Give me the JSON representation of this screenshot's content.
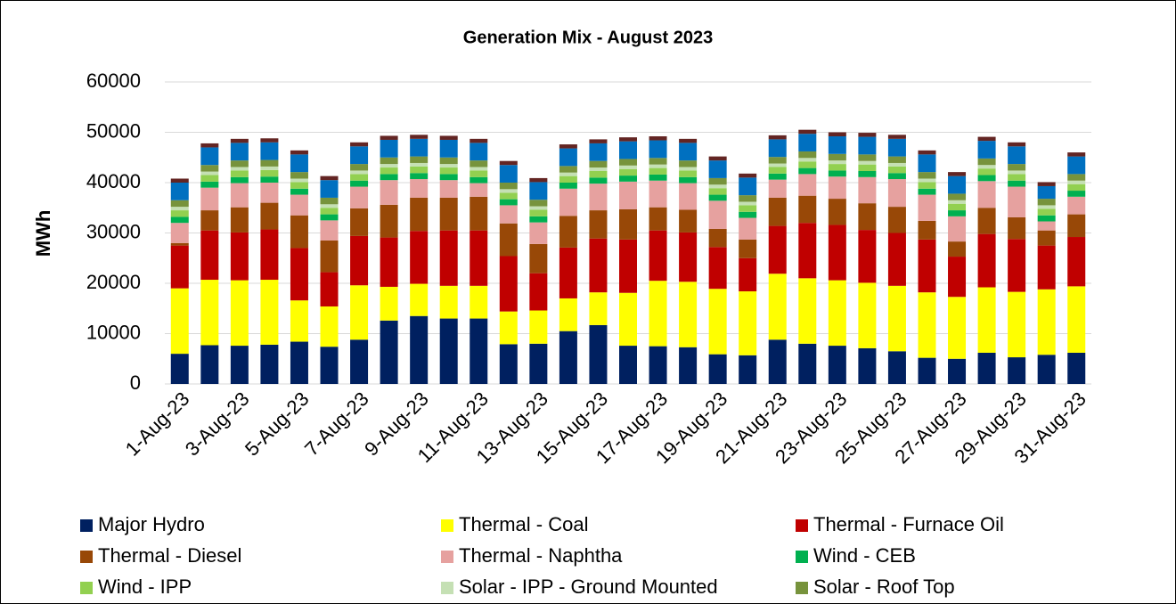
{
  "chart_data": {
    "type": "stacked_bar",
    "title": "Generation Mix - August 2023",
    "y_label": "MWh",
    "categories": [
      "1-Aug-23",
      null,
      "3-Aug-23",
      null,
      "5-Aug-23",
      null,
      "7-Aug-23",
      null,
      "9-Aug-23",
      null,
      "11-Aug-23",
      null,
      "13-Aug-23",
      null,
      "15-Aug-23",
      null,
      "17-Aug-23",
      null,
      "19-Aug-23",
      null,
      "21-Aug-23",
      null,
      "23-Aug-23",
      null,
      "25-Aug-23",
      null,
      "27-Aug-23",
      null,
      "29-Aug-23",
      null,
      "31-Aug-23"
    ],
    "ylim": [
      0,
      60000
    ],
    "yticks": [
      0,
      10000,
      20000,
      30000,
      40000,
      50000,
      60000
    ],
    "grid": true,
    "series": [
      {
        "name": "Major Hydro",
        "color": "#002060",
        "values": [
          6000,
          7700,
          7600,
          7800,
          8400,
          7400,
          8800,
          12600,
          13500,
          13000,
          13000,
          7900,
          8000,
          10500,
          11700,
          7600,
          7500,
          7300,
          5900,
          5700,
          8800,
          8000,
          7600,
          7100,
          6500,
          5200,
          5000,
          6200,
          5300,
          5800,
          6200
        ]
      },
      {
        "name": "Thermal - Coal",
        "color": "#ffff00",
        "values": [
          13000,
          13000,
          13000,
          12900,
          8200,
          8000,
          10800,
          6700,
          6400,
          6500,
          6500,
          6500,
          6600,
          6500,
          6500,
          10500,
          13000,
          13000,
          13000,
          12700,
          13100,
          13000,
          13000,
          13000,
          13000,
          13000,
          12300,
          13000,
          13000,
          13000,
          13200
        ]
      },
      {
        "name": "Thermal - Furnace Oil",
        "color": "#c00000",
        "values": [
          8500,
          9800,
          9500,
          10000,
          10400,
          6800,
          9800,
          9800,
          10500,
          11000,
          11000,
          11000,
          7400,
          10100,
          10700,
          10600,
          10000,
          9800,
          8300,
          6600,
          9500,
          11000,
          11000,
          10500,
          10500,
          10500,
          8000,
          10600,
          10500,
          8700,
          9800
        ]
      },
      {
        "name": "Thermal - Diesel",
        "color": "#984807",
        "values": [
          500,
          4000,
          5000,
          5300,
          6500,
          6300,
          5500,
          6500,
          6600,
          6500,
          6700,
          6500,
          5800,
          6300,
          5600,
          6000,
          4600,
          4500,
          3600,
          3700,
          5600,
          5400,
          5200,
          5300,
          5200,
          3700,
          3000,
          5200,
          4300,
          3000,
          4500
        ]
      },
      {
        "name": "Thermal - Naphtha",
        "color": "#e6a19f",
        "values": [
          4000,
          4500,
          4800,
          4000,
          4100,
          4000,
          4300,
          4900,
          3700,
          3500,
          2700,
          3600,
          4300,
          5400,
          5300,
          5500,
          5300,
          5300,
          5600,
          4300,
          3600,
          4300,
          4400,
          5200,
          5500,
          5200,
          5000,
          5300,
          6100,
          1800,
          3500
        ]
      },
      {
        "name": "Wind - CEB",
        "color": "#00b050",
        "values": [
          1200,
          1200,
          1200,
          1200,
          1200,
          1200,
          1200,
          1200,
          1200,
          1200,
          1200,
          1200,
          1200,
          1200,
          1200,
          1200,
          1200,
          1200,
          1200,
          1200,
          1200,
          1200,
          1200,
          1200,
          1200,
          1200,
          1200,
          1200,
          1200,
          1200,
          1200
        ]
      },
      {
        "name": "Wind - IPP",
        "color": "#92d050",
        "values": [
          1300,
          1300,
          1300,
          1300,
          1300,
          1300,
          1300,
          1300,
          1300,
          1300,
          1300,
          1300,
          1300,
          1300,
          1300,
          1300,
          1300,
          1300,
          1300,
          1300,
          1300,
          1300,
          1300,
          1300,
          1300,
          1300,
          1300,
          1300,
          1300,
          1300,
          1300
        ]
      },
      {
        "name": "Solar - IPP - Ground Mounted",
        "color": "#c5e0b4",
        "values": [
          700,
          700,
          700,
          700,
          700,
          700,
          700,
          700,
          700,
          700,
          700,
          700,
          700,
          700,
          700,
          700,
          700,
          700,
          700,
          700,
          700,
          700,
          700,
          700,
          700,
          700,
          700,
          700,
          700,
          700,
          700
        ]
      },
      {
        "name": "Solar - Roof Top",
        "color": "#77933c",
        "values": [
          1300,
          1300,
          1300,
          1300,
          1300,
          1300,
          1300,
          1300,
          1300,
          1300,
          1300,
          1300,
          1300,
          1300,
          1300,
          1300,
          1300,
          1300,
          1300,
          1300,
          1300,
          1300,
          1300,
          1300,
          1300,
          1300,
          1300,
          1300,
          1300,
          1300,
          1300
        ]
      },
      {
        "color": "#0070c0",
        "values": [
          3500,
          3500,
          3500,
          3500,
          3500,
          3500,
          3500,
          3500,
          3500,
          3500,
          3500,
          3500,
          3500,
          3500,
          3500,
          3500,
          3500,
          3500,
          3500,
          3500,
          3500,
          3500,
          3500,
          3500,
          3500,
          3500,
          3500,
          3500,
          3500,
          2500,
          3500
        ]
      },
      {
        "color": "#632523",
        "values": [
          800,
          800,
          800,
          800,
          800,
          800,
          800,
          800,
          800,
          800,
          800,
          800,
          800,
          800,
          800,
          800,
          800,
          800,
          800,
          800,
          800,
          800,
          800,
          800,
          800,
          800,
          800,
          800,
          800,
          800,
          800
        ]
      }
    ]
  }
}
